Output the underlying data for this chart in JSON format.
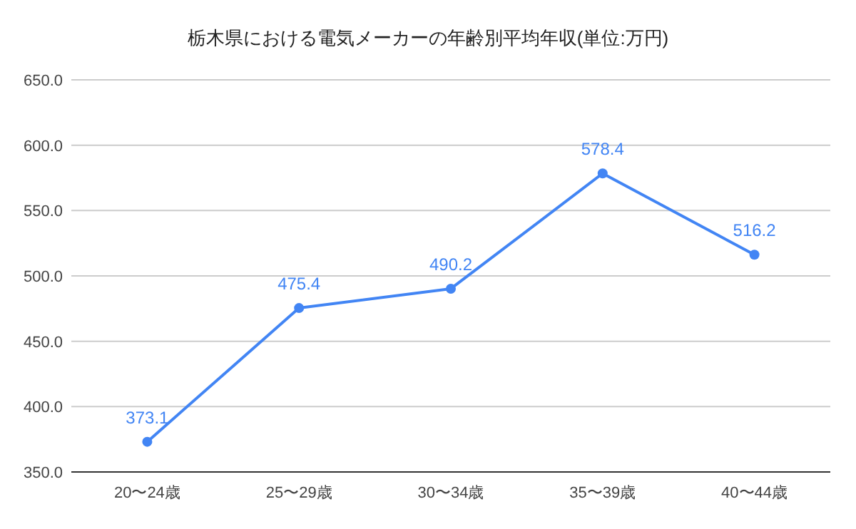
{
  "chart_data": {
    "type": "line",
    "title": "栃木県における電気メーカーの年齢別平均年収(単位:万円)",
    "categories": [
      "20〜24歳",
      "25〜29歳",
      "30〜34歳",
      "35〜39歳",
      "40〜44歳"
    ],
    "series": [
      {
        "color": "#4285f4",
        "values": [
          373.1,
          475.4,
          490.2,
          578.4,
          516.2
        ]
      }
    ],
    "ylim": [
      350,
      650
    ],
    "yticks": [
      {
        "value": 350,
        "label": "350.0"
      },
      {
        "value": 400,
        "label": "400.0"
      },
      {
        "value": 450,
        "label": "450.0"
      },
      {
        "value": 500,
        "label": "500.0"
      },
      {
        "value": 550,
        "label": "550.0"
      },
      {
        "value": 600,
        "label": "600.0"
      },
      {
        "value": 650,
        "label": "650.0"
      }
    ],
    "grid": "y",
    "marker": "circle",
    "data_labels": true
  }
}
